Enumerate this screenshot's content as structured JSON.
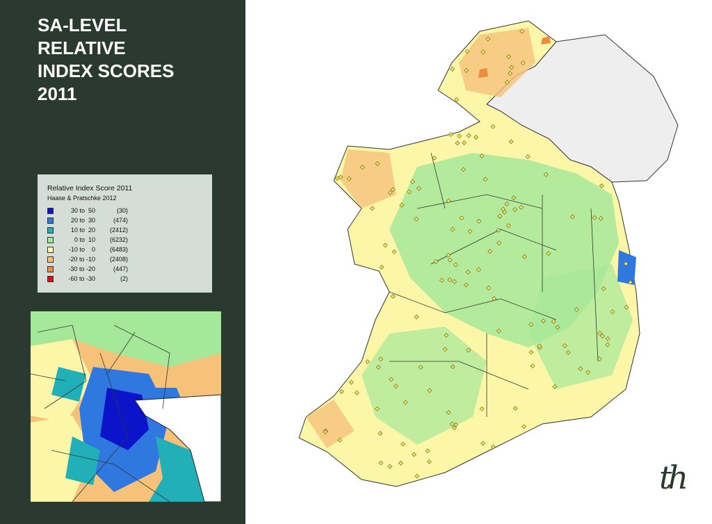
{
  "title": {
    "lines": [
      "SA-LEVEL",
      "RELATIVE",
      "INDEX SCORES",
      "2011"
    ]
  },
  "legend": {
    "title": "Relative Index Score 2011",
    "source": "Haase & Pratschke 2012",
    "items": [
      {
        "range": "30 to  50",
        "count": "(30)",
        "color": "#0a14c8"
      },
      {
        "range": "20 to  30",
        "count": "(474)",
        "color": "#2f78e0"
      },
      {
        "range": "10 to  20",
        "count": "(2412)",
        "color": "#22b0b8"
      },
      {
        "range": "0 to  10",
        "count": "(6232)",
        "color": "#a6e89a"
      },
      {
        "range": "-10 to    0",
        "count": "(6483)",
        "color": "#fbf6a8"
      },
      {
        "range": "-20 to -10",
        "count": "(2408)",
        "color": "#f6c27a"
      },
      {
        "range": "-30 to -20",
        "count": "(447)",
        "color": "#ee8a3c"
      },
      {
        "range": "-60 to -30",
        "count": "(2)",
        "color": "#e01010"
      }
    ]
  },
  "logo": "th"
}
